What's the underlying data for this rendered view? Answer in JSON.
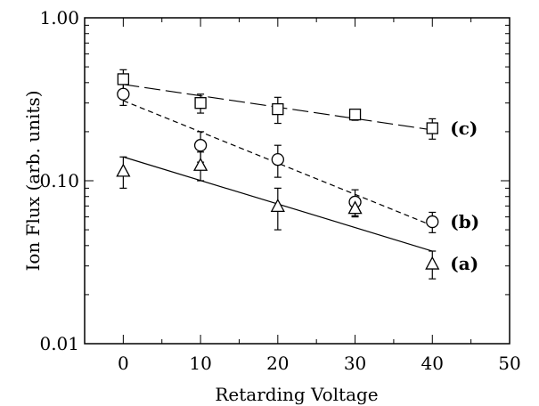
{
  "chart_data": {
    "type": "scatter",
    "title": "",
    "xlabel": "Retarding Voltage",
    "ylabel": "Ion Flux (arb. units)",
    "xlim": [
      -5,
      50
    ],
    "ylim": [
      0.01,
      1.0
    ],
    "yscale": "log",
    "x_ticks": [
      "0",
      "10",
      "20",
      "30",
      "40",
      "50"
    ],
    "y_ticks": [
      "0.01",
      "0.10",
      "1.00"
    ],
    "series": [
      {
        "name": "(c)",
        "marker": "square",
        "line_style": "long-dash",
        "x": [
          0,
          10,
          20,
          30,
          40
        ],
        "y": [
          0.42,
          0.3,
          0.275,
          0.255,
          0.21
        ],
        "err": [
          0.06,
          0.04,
          0.05,
          0.02,
          0.03
        ],
        "fit": [
          0.39,
          0.205
        ]
      },
      {
        "name": "(b)",
        "marker": "circle",
        "line_style": "short-dash",
        "x": [
          0,
          10,
          20,
          30,
          40
        ],
        "y": [
          0.34,
          0.165,
          0.135,
          0.074,
          0.056
        ],
        "err": [
          0.05,
          0.035,
          0.03,
          0.014,
          0.008
        ],
        "fit": [
          0.31,
          0.053
        ]
      },
      {
        "name": "(a)",
        "marker": "triangle",
        "line_style": "solid",
        "x": [
          0,
          10,
          20,
          30,
          40
        ],
        "y": [
          0.115,
          0.125,
          0.07,
          0.068,
          0.031
        ],
        "err": [
          0.025,
          0.025,
          0.02,
          0.007,
          0.006
        ],
        "fit": [
          0.14,
          0.037
        ]
      }
    ]
  }
}
